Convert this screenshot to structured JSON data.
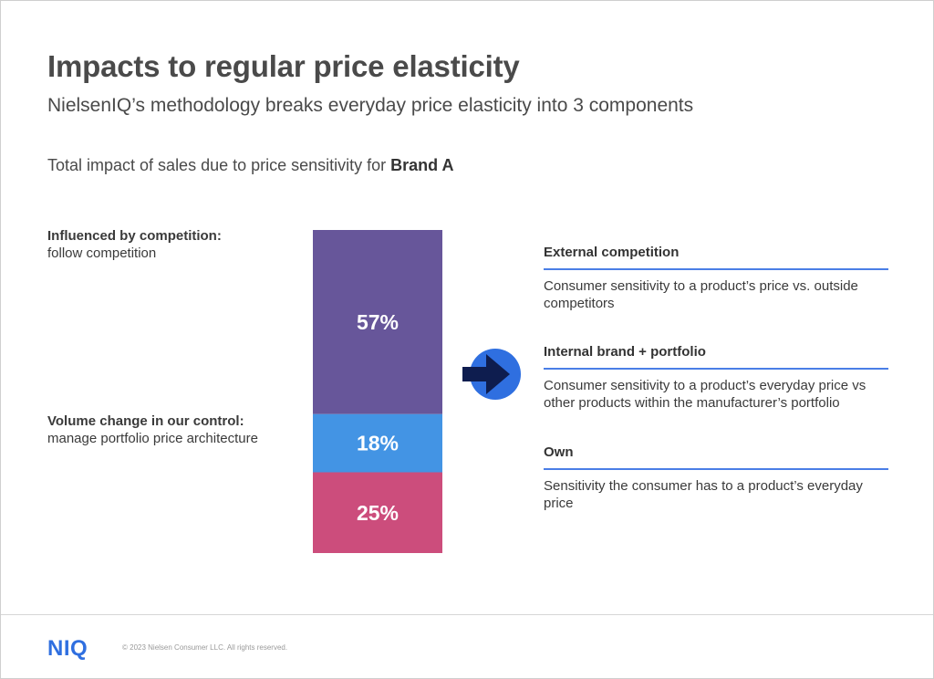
{
  "title": "Impacts to regular price elasticity",
  "subtitle": "NielsenIQ’s methodology breaks everyday price elasticity into 3 components",
  "chart_subtitle": {
    "prefix": "Total impact of sales due to price sensitivity for ",
    "brand": "Brand A"
  },
  "left_labels": [
    {
      "heading": "Influenced by competition:",
      "text": "follow competition"
    },
    {
      "heading": "Volume change in our control:",
      "text": "manage portfolio price architecture"
    }
  ],
  "chart_data": {
    "type": "bar",
    "stacked": true,
    "unit": "%",
    "ylim": [
      0,
      100
    ],
    "segments": [
      {
        "label": "57%",
        "value": 57,
        "color": "#67569a"
      },
      {
        "label": "18%",
        "value": 18,
        "color": "#4394e4"
      },
      {
        "label": "25%",
        "value": 25,
        "color": "#cc4d7c"
      }
    ]
  },
  "components": [
    {
      "heading": "External competition",
      "text": "Consumer sensitivity to a product’s price vs. outside competitors"
    },
    {
      "heading": "Internal brand + portfolio",
      "text": "Consumer sensitivity to a product’s everyday price vs other products within the manufacturer’s portfolio"
    },
    {
      "heading": "Own",
      "text": "Sensitivity the consumer has to a product’s everyday price"
    }
  ],
  "icons": {
    "arrow": "arrow-right-icon"
  },
  "colors": {
    "accent": "#2f6fe0",
    "arrow_circle": "#2f6fe0",
    "arrow": "#0e1d4f"
  },
  "footer": {
    "logo": "NIQ",
    "copyright": "© 2023 Nielsen Consumer LLC. All rights reserved."
  }
}
